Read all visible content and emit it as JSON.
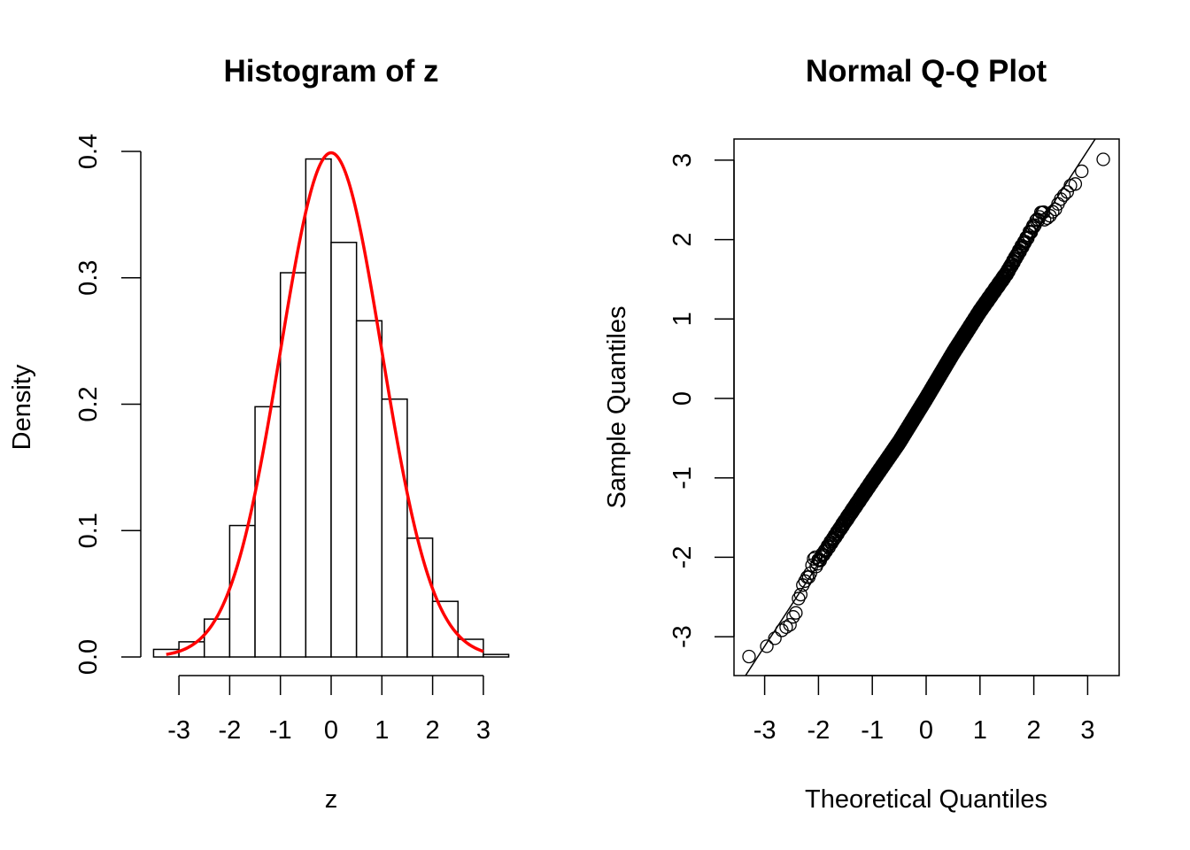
{
  "chart_data": [
    {
      "type": "bar",
      "subtype": "histogram",
      "title": "Histogram of z",
      "xlabel": "z",
      "ylabel": "Density",
      "xlim": [
        -3.5,
        3.5
      ],
      "ylim": [
        0,
        0.4
      ],
      "xticks": [
        "-3",
        "-2",
        "-1",
        "0",
        "1",
        "2",
        "3"
      ],
      "yticks": [
        "0.0",
        "0.1",
        "0.2",
        "0.3",
        "0.4"
      ],
      "bin_edges": [
        -3.5,
        -3.0,
        -2.5,
        -2.0,
        -1.5,
        -1.0,
        -0.5,
        0.0,
        0.5,
        1.0,
        1.5,
        2.0,
        2.5,
        3.0,
        3.5
      ],
      "values": [
        0.006,
        0.012,
        0.03,
        0.104,
        0.198,
        0.304,
        0.394,
        0.328,
        0.266,
        0.204,
        0.094,
        0.044,
        0.014,
        0.002
      ],
      "overlay": {
        "type": "line",
        "name": "normal density",
        "color": "#ff0000",
        "x_range": [
          -3.25,
          3.0
        ],
        "mean": 0,
        "sd": 1
      }
    },
    {
      "type": "scatter",
      "subtype": "qq",
      "title": "Normal Q-Q Plot",
      "xlabel": "Theoretical Quantiles",
      "ylabel": "Sample Quantiles",
      "xlim": [
        -3.5,
        3.5
      ],
      "ylim": [
        -3.5,
        3.2
      ],
      "xticks": [
        "-3",
        "-2",
        "-1",
        "0",
        "1",
        "2",
        "3"
      ],
      "yticks": [
        "-3",
        "-2",
        "-1",
        "0",
        "1",
        "2",
        "3"
      ],
      "n_points": 1000,
      "reference_line": {
        "intercept": 0,
        "slope": 1.04
      },
      "tail_points": {
        "x": [
          -3.29,
          -2.96,
          -2.81,
          -2.68,
          -2.6,
          -2.53,
          -2.47,
          -2.42,
          -2.37,
          -2.33,
          -2.29,
          -2.25,
          -2.21,
          -2.18,
          -2.15,
          -2.12,
          -2.09,
          -2.06,
          2.2,
          2.25,
          2.3,
          2.35,
          2.4,
          2.45,
          2.5,
          2.56,
          2.62,
          2.68,
          2.77,
          2.89,
          3.29
        ],
        "y": [
          -3.25,
          -3.12,
          -3.02,
          -2.92,
          -2.88,
          -2.85,
          -2.75,
          -2.7,
          -2.52,
          -2.47,
          -2.35,
          -2.3,
          -2.25,
          -2.25,
          -2.2,
          -2.1,
          -2.02,
          -2.0,
          2.25,
          2.27,
          2.3,
          2.35,
          2.38,
          2.45,
          2.51,
          2.56,
          2.6,
          2.68,
          2.7,
          2.86,
          3.01
        ]
      },
      "body_deviation_knots": {
        "q": [
          -2.05,
          -1.5,
          -1.0,
          -0.5,
          0.0,
          0.5,
          1.0,
          1.5,
          2.05
        ],
        "d": [
          0.03,
          0.02,
          0.0,
          -0.03,
          0.0,
          0.05,
          0.06,
          0.02,
          0.1
        ]
      }
    }
  ]
}
